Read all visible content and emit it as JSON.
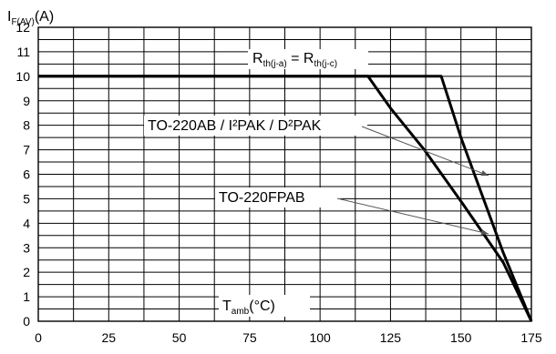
{
  "chart_data": {
    "type": "line",
    "x_ticks": [
      "0",
      "25",
      "50",
      "75",
      "100",
      "125",
      "150",
      "175"
    ],
    "y_ticks": [
      "0",
      "1",
      "2",
      "3",
      "4",
      "5",
      "6",
      "7",
      "8",
      "9",
      "10",
      "11",
      "12"
    ],
    "xlim": [
      0,
      175
    ],
    "ylim": [
      0,
      12
    ],
    "grid": true,
    "ylabel": {
      "main": "I",
      "sub": "F(AV)",
      "tail": "(A)"
    },
    "xlabel": {
      "main": "T",
      "sub": "amb",
      "tail": "(°C)"
    },
    "rth_label": {
      "r1": "R",
      "s1": "th(j-a)",
      "eq": " = ",
      "r2": "R",
      "s2": "th(j-c)"
    },
    "series": [
      {
        "name": "TO-220AB / I²PAK / D²PAK",
        "x": [
          0,
          143,
          150,
          158,
          165,
          175
        ],
        "y": [
          10,
          10,
          7.5,
          5,
          2.8,
          0
        ]
      },
      {
        "name": "TO-220FPAB",
        "x": [
          0,
          117,
          125,
          137,
          150,
          165,
          175
        ],
        "y": [
          10,
          10,
          8.7,
          7,
          4.9,
          2.4,
          0
        ]
      }
    ]
  }
}
